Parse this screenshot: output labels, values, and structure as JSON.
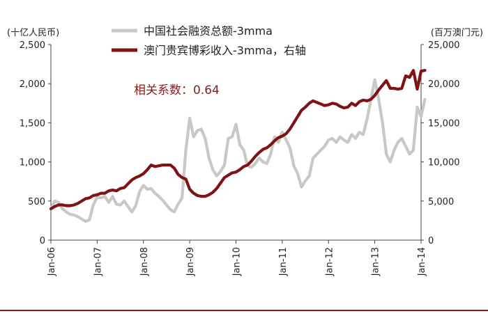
{
  "chart_data": {
    "type": "line",
    "left_axis_unit": "(十亿人民币)",
    "right_axis_unit": "(百万澳门元)",
    "left_ylim": [
      0,
      2500
    ],
    "right_ylim": [
      0,
      25000
    ],
    "left_ticks": [
      "0",
      "500",
      "1,000",
      "1,500",
      "2,000",
      "2,500"
    ],
    "right_ticks": [
      "0",
      "5,000",
      "10,000",
      "15,000",
      "20,000",
      "25,000"
    ],
    "x_ticks": [
      "Jan-06",
      "Jan-07",
      "Jan-08",
      "Jan-09",
      "Jan-10",
      "Jan-11",
      "Jan-12",
      "Jan-13",
      "Jan-14"
    ],
    "annotation": "相关系数：0.64",
    "colors": {
      "tsf": "#c8c8c4",
      "macau": "#7f1214",
      "annotation": "#8b1a1a"
    },
    "series": [
      {
        "name": "中国社会融资总额-3mma",
        "axis": "left",
        "x_start": "Jan-06",
        "values": [
          400,
          500,
          480,
          400,
          360,
          330,
          320,
          300,
          270,
          240,
          260,
          450,
          550,
          540,
          560,
          480,
          560,
          460,
          450,
          500,
          430,
          360,
          440,
          620,
          700,
          650,
          660,
          600,
          560,
          510,
          450,
          390,
          360,
          460,
          540,
          1150,
          1560,
          1320,
          1400,
          1420,
          1300,
          1050,
          900,
          820,
          880,
          960,
          1300,
          1320,
          1480,
          1220,
          1150,
          950,
          930,
          980,
          1050,
          1000,
          980,
          1100,
          1320,
          1250,
          1380,
          1280,
          1180,
          950,
          850,
          680,
          760,
          820,
          1050,
          1100,
          1150,
          1200,
          1280,
          1300,
          1250,
          1320,
          1280,
          1250,
          1350,
          1300,
          1380,
          1350,
          1550,
          1800,
          2050,
          1800,
          1500,
          1100,
          1000,
          1150,
          1250,
          1300,
          1200,
          1100,
          1150,
          1700,
          1580,
          1800
        ]
      },
      {
        "name": "澳门贵宾博彩收入-3mma，右轴",
        "axis": "right",
        "x_start": "Jan-06",
        "values": [
          4000,
          4300,
          4500,
          4500,
          4400,
          4400,
          4500,
          4700,
          5000,
          5300,
          5400,
          5700,
          5800,
          6000,
          6000,
          6300,
          6400,
          6300,
          6600,
          6700,
          7200,
          7700,
          8000,
          8200,
          8500,
          9000,
          9600,
          9400,
          9500,
          9600,
          9600,
          9600,
          9200,
          8400,
          8000,
          7800,
          6500,
          6000,
          5700,
          5600,
          5600,
          5800,
          6100,
          6600,
          7300,
          8000,
          8300,
          8600,
          8700,
          9000,
          9400,
          9600,
          10100,
          10700,
          11200,
          11600,
          11800,
          12200,
          12700,
          13100,
          13300,
          13600,
          14200,
          15000,
          15800,
          16600,
          17000,
          17500,
          17800,
          17600,
          17400,
          17200,
          17300,
          17500,
          17400,
          17100,
          16900,
          17000,
          17500,
          17200,
          17700,
          17900,
          17800,
          18000,
          18500,
          19200,
          19800,
          20400,
          19400,
          19400,
          19300,
          19400,
          21000,
          20800,
          21700,
          19300,
          21600,
          21700
        ]
      }
    ]
  }
}
